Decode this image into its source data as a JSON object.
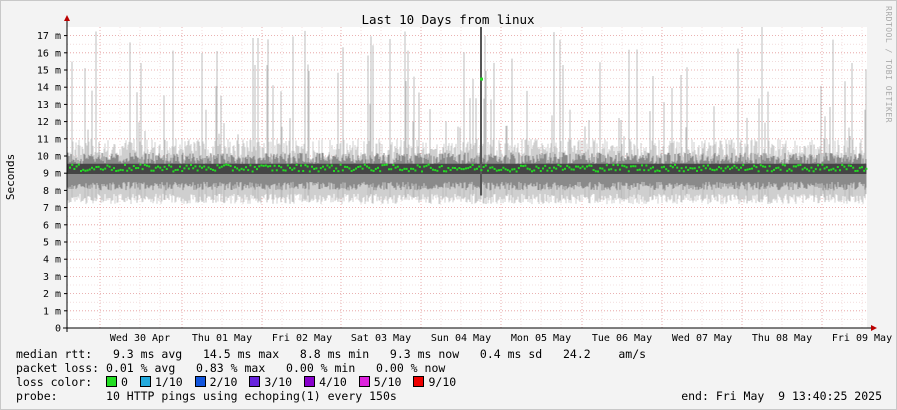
{
  "chart_data": {
    "type": "line",
    "title": "Last 10 Days from linux",
    "ylabel": "Seconds",
    "ylim": [
      0,
      0.0175
    ],
    "y_ticks": [
      {
        "value": 0,
        "label": "0"
      },
      {
        "value": 0.001,
        "label": "1 m"
      },
      {
        "value": 0.002,
        "label": "2 m"
      },
      {
        "value": 0.003,
        "label": "3 m"
      },
      {
        "value": 0.004,
        "label": "4 m"
      },
      {
        "value": 0.005,
        "label": "5 m"
      },
      {
        "value": 0.006,
        "label": "6 m"
      },
      {
        "value": 0.007,
        "label": "7 m"
      },
      {
        "value": 0.008,
        "label": "8 m"
      },
      {
        "value": 0.009,
        "label": "9 m"
      },
      {
        "value": 0.01,
        "label": "10 m"
      },
      {
        "value": 0.011,
        "label": "11 m"
      },
      {
        "value": 0.012,
        "label": "12 m"
      },
      {
        "value": 0.013,
        "label": "13 m"
      },
      {
        "value": 0.014,
        "label": "14 m"
      },
      {
        "value": 0.015,
        "label": "15 m"
      },
      {
        "value": 0.016,
        "label": "16 m"
      },
      {
        "value": 0.017,
        "label": "17 m"
      }
    ],
    "x_ticks": [
      "Wed 30 Apr",
      "Thu 01 May",
      "Fri 02 May",
      "Sat 03 May",
      "Sun 04 May",
      "Mon 05 May",
      "Tue 06 May",
      "Wed 07 May",
      "Thu 08 May",
      "Fri 09 May"
    ],
    "grid": true,
    "series": [
      {
        "name": "median rtt",
        "color": "#22dd22",
        "typical_value": 0.0093,
        "min_value": 0.0088,
        "max_value": 0.0145
      }
    ]
  },
  "side_label": "RRDTOOL / TOBI OETIKER",
  "legend": {
    "median_label": "median rtt:",
    "median_values": "9.3 ms avg   14.5 ms max   8.8 ms min   9.3 ms now   0.4 ms sd   24.2    am/s",
    "loss_label": "packet loss:",
    "loss_values": "0.01 % avg   0.83 % max   0.00 % min   0.00 % now",
    "color_label": "loss color:",
    "colors": [
      {
        "label": "0",
        "color": "#22dd22"
      },
      {
        "label": "1/10",
        "color": "#22aadd"
      },
      {
        "label": "2/10",
        "color": "#1155dd"
      },
      {
        "label": "3/10",
        "color": "#6622dd"
      },
      {
        "label": "4/10",
        "color": "#8800cc"
      },
      {
        "label": "5/10",
        "color": "#dd22dd"
      },
      {
        "label": "9/10",
        "color": "#ee0000"
      }
    ],
    "probe_label": "probe:",
    "probe_value": "10 HTTP pings using echoping(1) every 150s",
    "end_label": "end: Fri May  9 13:40:25 2025"
  }
}
